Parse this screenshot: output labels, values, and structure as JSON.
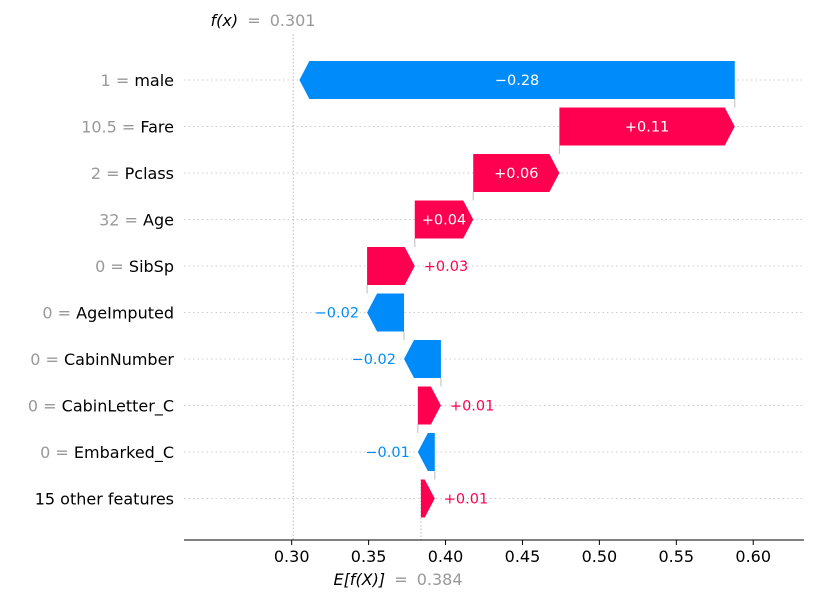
{
  "chart_data": {
    "type": "waterfall",
    "fx_label": "f(x)",
    "fx_value": "0.301",
    "ex_label": "E[f(X)]",
    "ex_value": "0.384",
    "base_value": 0.384,
    "output_value": 0.301,
    "xlim": [
      0.23,
      0.633
    ],
    "xticks": [
      0.3,
      0.35,
      0.4,
      0.45,
      0.5,
      0.55,
      0.6
    ],
    "xtick_labels": [
      "0.30",
      "0.35",
      "0.40",
      "0.45",
      "0.50",
      "0.55",
      "0.60"
    ],
    "positive_color": "#ff0051",
    "negative_color": "#008bfb",
    "features": [
      {
        "value": "1",
        "name": "male",
        "contribution": -0.283,
        "label": "−0.28"
      },
      {
        "value": "10.5",
        "name": "Fare",
        "contribution": 0.114,
        "label": "+0.11"
      },
      {
        "value": "2",
        "name": "Pclass",
        "contribution": 0.056,
        "label": "+0.06"
      },
      {
        "value": "32",
        "name": "Age",
        "contribution": 0.038,
        "label": "+0.04"
      },
      {
        "value": "0",
        "name": "SibSp",
        "contribution": 0.031,
        "label": "+0.03"
      },
      {
        "value": "0",
        "name": "AgeImputed",
        "contribution": -0.024,
        "label": "−0.02"
      },
      {
        "value": "0",
        "name": "CabinNumber",
        "contribution": -0.024,
        "label": "−0.02"
      },
      {
        "value": "0",
        "name": "CabinLetter_C",
        "contribution": 0.015,
        "label": "+0.01"
      },
      {
        "value": "0",
        "name": "Embarked_C",
        "contribution": -0.011,
        "label": "−0.01"
      },
      {
        "name": "15 other features",
        "contribution": 0.009,
        "label": "+0.01"
      }
    ]
  }
}
